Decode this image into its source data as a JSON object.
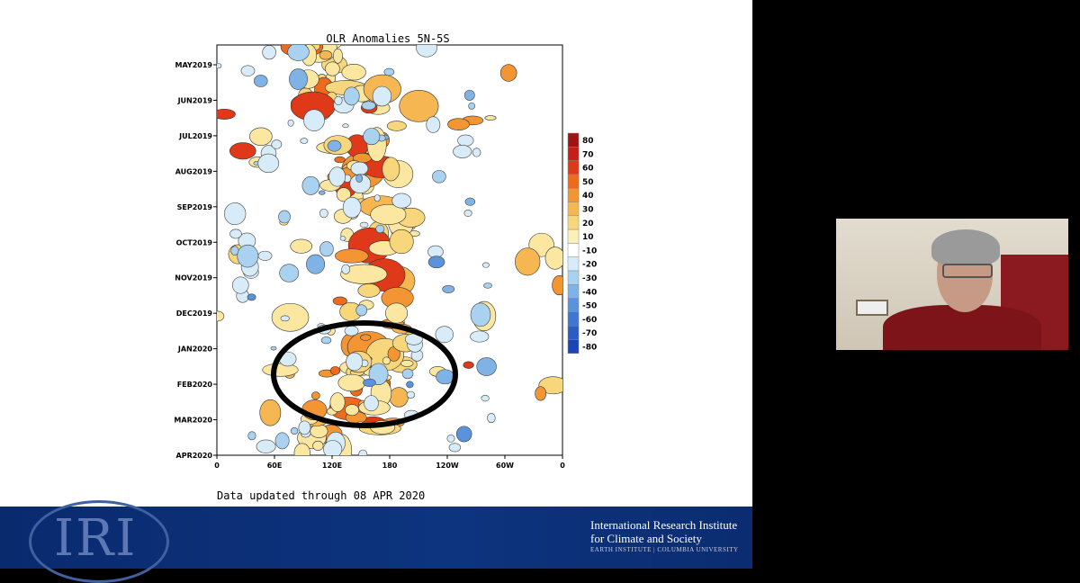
{
  "slide": {
    "chart_title": "OLR Anomalies 5N-5S",
    "updated_text": "Data updated through 08 APR 2020",
    "org_line1": "International Research Institute",
    "org_line2": "for Climate and Society",
    "org_line3": "EARTH INSTITUTE | COLUMBIA UNIVERSITY",
    "logo_text": "IRI"
  },
  "chart_data": {
    "type": "heatmap",
    "title": "OLR Anomalies 5N-5S",
    "y_ticks": [
      "MAY2019",
      "JUN2019",
      "JUL2019",
      "AUG2019",
      "SEP2019",
      "OCT2019",
      "NOV2019",
      "DEC2019",
      "JAN2020",
      "FEB2020",
      "MAR2020",
      "APR2020"
    ],
    "x_ticks": [
      "0",
      "60E",
      "120E",
      "180",
      "120W",
      "60W",
      "0"
    ],
    "colorbar_levels": [
      80,
      70,
      60,
      50,
      40,
      30,
      20,
      10,
      -10,
      -20,
      -30,
      -40,
      -50,
      -60,
      -70,
      -80
    ],
    "colorbar_colors": [
      "#a01214",
      "#c81e1a",
      "#e0391a",
      "#ee6a1c",
      "#f39532",
      "#f6b753",
      "#f8d77c",
      "#fbf1b8",
      "#ffffff",
      "#d7ecf8",
      "#a9d2f0",
      "#7fb3e6",
      "#5a93dc",
      "#3f76d2",
      "#2b5cc6",
      "#1a44b8"
    ],
    "annotation": "black ellipse highlighting JAN2020–MAR2020 near 90E–180"
  },
  "webcam": {
    "label": "presenter video"
  }
}
